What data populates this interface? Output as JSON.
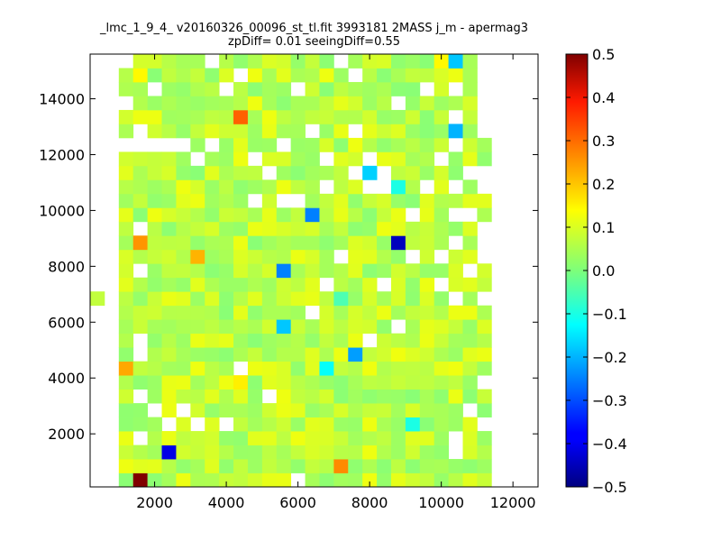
{
  "chart_data": {
    "type": "heatmap",
    "title_lines": [
      "_lmc_1_9_4_ v20160326_00096_st_tl.fit 3993181 2MASS j_m - apermag3",
      "zpDiff= 0.01 seeingDiff=0.55"
    ],
    "xlabel": "",
    "ylabel": "",
    "xlim": [
      200,
      12700
    ],
    "ylim": [
      100,
      15600
    ],
    "x_ticks": [
      2000,
      4000,
      6000,
      8000,
      10000,
      12000
    ],
    "y_ticks": [
      2000,
      4000,
      6000,
      8000,
      10000,
      12000,
      14000
    ],
    "x_tick_labels": [
      "2000",
      "4000",
      "6000",
      "8000",
      "10000",
      "12000"
    ],
    "y_tick_labels": [
      "2000",
      "4000",
      "6000",
      "8000",
      "10000",
      "12000",
      "14000"
    ],
    "grid": false,
    "colormap": "jet",
    "colorbar": {
      "range": [
        -0.5,
        0.5
      ],
      "ticks": [
        -0.5,
        -0.4,
        -0.3,
        -0.2,
        -0.1,
        0.0,
        0.1,
        0.2,
        0.3,
        0.4,
        0.5
      ],
      "tick_labels": [
        "−0.5",
        "−0.4",
        "−0.3",
        "−0.2",
        "−0.1",
        "0.0",
        "0.1",
        "0.2",
        "0.3",
        "0.4",
        "0.5"
      ]
    },
    "grid_cells": {
      "x_start": 200,
      "cell_width": 400,
      "y_start": 100,
      "cell_height": 500,
      "cols": 31,
      "rows": 31
    },
    "background_value": 0.06,
    "empty_cells": [
      [
        0,
        0
      ],
      [
        0,
        1
      ],
      [
        0,
        2
      ],
      [
        0,
        3
      ],
      [
        0,
        4
      ],
      [
        0,
        5
      ],
      [
        0,
        6
      ],
      [
        0,
        7
      ],
      [
        0,
        8
      ],
      [
        0,
        9
      ],
      [
        0,
        10
      ],
      [
        0,
        11
      ],
      [
        0,
        12
      ],
      [
        0,
        14
      ],
      [
        0,
        15
      ],
      [
        0,
        16
      ],
      [
        0,
        17
      ],
      [
        0,
        18
      ],
      [
        0,
        19
      ],
      [
        0,
        20
      ],
      [
        0,
        21
      ],
      [
        0,
        22
      ],
      [
        0,
        23
      ],
      [
        0,
        24
      ],
      [
        0,
        25
      ],
      [
        0,
        26
      ],
      [
        0,
        27
      ],
      [
        0,
        28
      ],
      [
        0,
        29
      ],
      [
        0,
        30
      ],
      [
        1,
        0
      ],
      [
        1,
        1
      ],
      [
        1,
        2
      ],
      [
        1,
        3
      ],
      [
        1,
        4
      ],
      [
        1,
        5
      ],
      [
        1,
        6
      ],
      [
        1,
        7
      ],
      [
        1,
        8
      ],
      [
        1,
        9
      ],
      [
        1,
        10
      ],
      [
        1,
        11
      ],
      [
        1,
        12
      ],
      [
        1,
        13
      ],
      [
        1,
        14
      ],
      [
        1,
        15
      ],
      [
        1,
        16
      ],
      [
        1,
        17
      ],
      [
        1,
        18
      ],
      [
        1,
        19
      ],
      [
        1,
        20
      ],
      [
        1,
        21
      ],
      [
        1,
        22
      ],
      [
        1,
        23
      ],
      [
        1,
        24
      ],
      [
        1,
        25
      ],
      [
        1,
        26
      ],
      [
        1,
        27
      ],
      [
        1,
        28
      ],
      [
        1,
        29
      ],
      [
        1,
        30
      ],
      [
        2,
        24
      ],
      [
        2,
        27
      ],
      [
        2,
        30
      ],
      [
        3,
        3
      ],
      [
        3,
        6
      ],
      [
        3,
        9
      ],
      [
        3,
        10
      ],
      [
        3,
        15
      ],
      [
        3,
        18
      ],
      [
        3,
        24
      ],
      [
        3,
        25
      ],
      [
        4,
        5
      ],
      [
        4,
        24
      ],
      [
        4,
        28
      ],
      [
        5,
        4
      ],
      [
        5,
        24
      ],
      [
        6,
        5
      ],
      [
        6,
        24
      ],
      [
        7,
        4
      ],
      [
        7,
        23
      ],
      [
        8,
        24
      ],
      [
        8,
        30
      ],
      [
        9,
        4
      ],
      [
        9,
        28
      ],
      [
        10,
        8
      ],
      [
        10,
        29
      ],
      [
        11,
        20
      ],
      [
        11,
        23
      ],
      [
        12,
        6
      ],
      [
        12,
        22
      ],
      [
        13,
        20
      ],
      [
        13,
        24
      ],
      [
        14,
        0
      ],
      [
        14,
        20
      ],
      [
        14,
        28
      ],
      [
        15,
        12
      ],
      [
        15,
        25
      ],
      [
        16,
        14
      ],
      [
        16,
        21
      ],
      [
        16,
        23
      ],
      [
        17,
        16
      ],
      [
        17,
        30
      ],
      [
        18,
        22
      ],
      [
        18,
        25
      ],
      [
        18,
        29
      ],
      [
        19,
        10
      ],
      [
        19,
        21
      ],
      [
        19,
        23
      ],
      [
        20,
        14
      ],
      [
        20,
        21
      ],
      [
        20,
        22
      ],
      [
        21,
        11
      ],
      [
        21,
        27
      ],
      [
        22,
        16
      ],
      [
        22,
        19
      ],
      [
        23,
        21
      ],
      [
        23,
        28
      ],
      [
        24,
        14
      ],
      [
        24,
        16
      ],
      [
        24,
        23
      ],
      [
        25,
        2
      ],
      [
        25,
        3
      ],
      [
        25,
        13
      ],
      [
        25,
        17
      ],
      [
        25,
        19
      ],
      [
        25,
        21
      ],
      [
        25,
        24
      ],
      [
        25,
        26
      ],
      [
        25,
        28
      ],
      [
        26,
        5
      ],
      [
        26,
        15
      ],
      [
        26,
        19
      ],
      [
        26,
        22
      ],
      [
        27,
        4
      ],
      [
        27,
        7
      ],
      [
        27,
        13
      ],
      [
        27,
        16
      ],
      [
        27,
        17
      ],
      [
        27,
        18
      ],
      [
        27,
        21
      ],
      [
        27,
        22
      ],
      [
        27,
        25
      ],
      [
        27,
        26
      ],
      [
        27,
        27
      ],
      [
        27,
        28
      ],
      [
        27,
        29
      ],
      [
        27,
        30
      ],
      [
        28,
        0
      ],
      [
        28,
        1
      ],
      [
        28,
        2
      ],
      [
        28,
        3
      ],
      [
        28,
        4
      ],
      [
        28,
        5
      ],
      [
        28,
        6
      ],
      [
        28,
        7
      ],
      [
        28,
        8
      ],
      [
        28,
        9
      ],
      [
        28,
        10
      ],
      [
        28,
        11
      ],
      [
        28,
        12
      ],
      [
        28,
        13
      ],
      [
        28,
        14
      ],
      [
        28,
        15
      ],
      [
        28,
        16
      ],
      [
        28,
        17
      ],
      [
        28,
        18
      ],
      [
        28,
        19
      ],
      [
        28,
        20
      ],
      [
        28,
        21
      ],
      [
        28,
        22
      ],
      [
        28,
        23
      ],
      [
        28,
        24
      ],
      [
        28,
        25
      ],
      [
        28,
        26
      ],
      [
        28,
        27
      ],
      [
        28,
        28
      ],
      [
        28,
        29
      ],
      [
        28,
        30
      ],
      [
        29,
        0
      ],
      [
        29,
        1
      ],
      [
        29,
        2
      ],
      [
        29,
        3
      ],
      [
        29,
        4
      ],
      [
        29,
        5
      ],
      [
        29,
        6
      ],
      [
        29,
        7
      ],
      [
        29,
        8
      ],
      [
        29,
        9
      ],
      [
        29,
        10
      ],
      [
        29,
        11
      ],
      [
        29,
        12
      ],
      [
        29,
        13
      ],
      [
        29,
        14
      ],
      [
        29,
        15
      ],
      [
        29,
        16
      ],
      [
        29,
        17
      ],
      [
        29,
        18
      ],
      [
        29,
        19
      ],
      [
        29,
        20
      ],
      [
        29,
        21
      ],
      [
        29,
        22
      ],
      [
        29,
        23
      ],
      [
        29,
        24
      ],
      [
        29,
        25
      ],
      [
        29,
        26
      ],
      [
        29,
        27
      ],
      [
        29,
        28
      ],
      [
        29,
        29
      ],
      [
        29,
        30
      ],
      [
        30,
        0
      ],
      [
        30,
        1
      ],
      [
        30,
        2
      ],
      [
        30,
        3
      ],
      [
        30,
        4
      ],
      [
        30,
        5
      ],
      [
        30,
        6
      ],
      [
        30,
        7
      ],
      [
        30,
        8
      ],
      [
        30,
        9
      ],
      [
        30,
        10
      ],
      [
        30,
        11
      ],
      [
        30,
        12
      ],
      [
        30,
        13
      ],
      [
        30,
        14
      ],
      [
        30,
        15
      ],
      [
        30,
        16
      ],
      [
        30,
        17
      ],
      [
        30,
        18
      ],
      [
        30,
        19
      ],
      [
        30,
        20
      ],
      [
        30,
        21
      ],
      [
        30,
        22
      ],
      [
        30,
        23
      ],
      [
        30,
        24
      ],
      [
        30,
        25
      ],
      [
        30,
        26
      ],
      [
        30,
        27
      ],
      [
        30,
        28
      ],
      [
        30,
        29
      ],
      [
        30,
        30
      ]
    ],
    "cells": [
      {
        "col": 3,
        "row": 0,
        "value": 0.5
      },
      {
        "col": 17,
        "row": 1,
        "value": 0.24
      },
      {
        "col": 5,
        "row": 2,
        "value": -0.4
      },
      {
        "col": 21,
        "row": 9,
        "value": 0.11
      },
      {
        "col": 10,
        "row": 7,
        "value": 0.14
      },
      {
        "col": 2,
        "row": 8,
        "value": 0.21
      },
      {
        "col": 16,
        "row": 8,
        "value": -0.12
      },
      {
        "col": 18,
        "row": 9,
        "value": -0.22
      },
      {
        "col": 13,
        "row": 11,
        "value": -0.18
      },
      {
        "col": 22,
        "row": 4,
        "value": -0.1
      },
      {
        "col": 27,
        "row": 7,
        "value": -0.08
      },
      {
        "col": 13,
        "row": 15,
        "value": -0.25
      },
      {
        "col": 7,
        "row": 16,
        "value": 0.2
      },
      {
        "col": 3,
        "row": 17,
        "value": 0.23
      },
      {
        "col": 21,
        "row": 17,
        "value": -0.44
      },
      {
        "col": 15,
        "row": 19,
        "value": -0.25
      },
      {
        "col": 19,
        "row": 22,
        "value": -0.17
      },
      {
        "col": 25,
        "row": 25,
        "value": -0.2
      },
      {
        "col": 10,
        "row": 26,
        "value": 0.28
      },
      {
        "col": 25,
        "row": 30,
        "value": -0.18
      },
      {
        "col": 24,
        "row": 30,
        "value": 0.13
      },
      {
        "col": 3,
        "row": 29,
        "value": 0.13
      },
      {
        "col": 21,
        "row": 21,
        "value": -0.1
      },
      {
        "col": 12,
        "row": 30,
        "value": 0.09
      },
      {
        "col": 9,
        "row": 4,
        "value": 0.02
      },
      {
        "col": 6,
        "row": 22,
        "value": 0.02
      },
      {
        "col": 17,
        "row": 13,
        "value": -0.05
      }
    ]
  }
}
